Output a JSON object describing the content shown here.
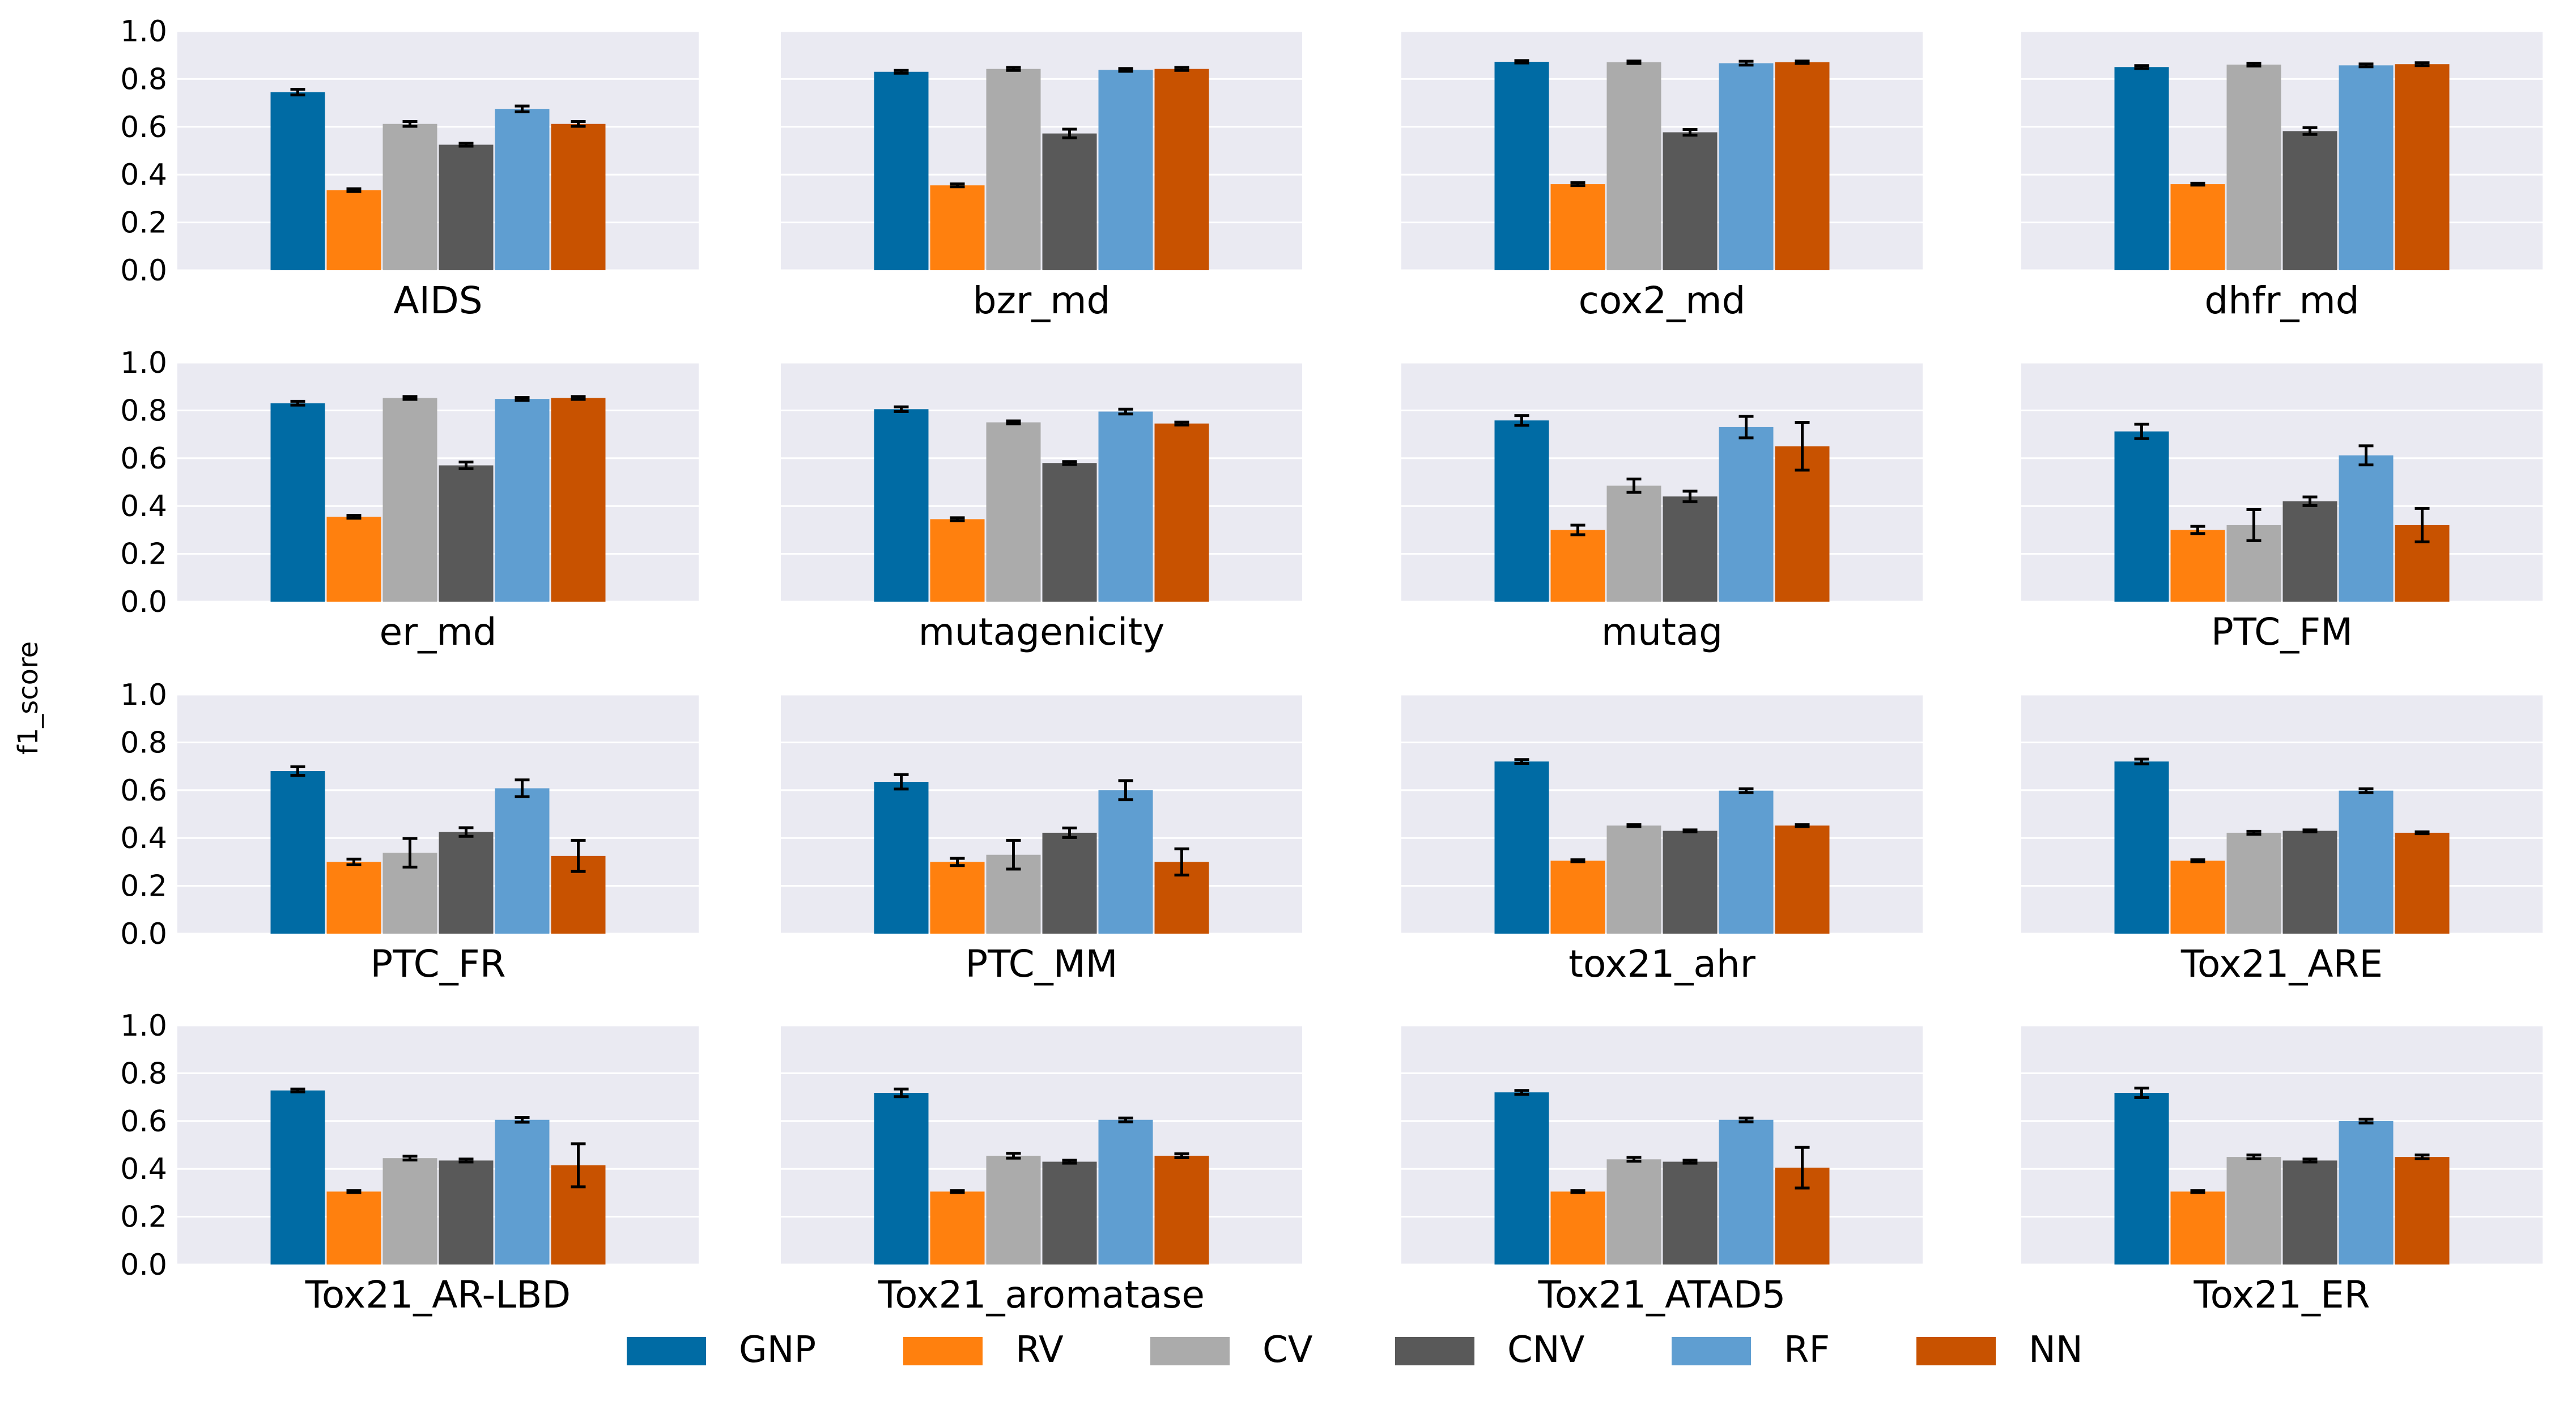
{
  "chart_data": {
    "type": "bar",
    "ylabel": "f1_score",
    "ylim": [
      0,
      1
    ],
    "yticks": [
      "0.0",
      "0.2",
      "0.4",
      "0.6",
      "0.8",
      "1.0"
    ],
    "series_names": [
      "GNP",
      "RV",
      "CV",
      "CNV",
      "RF",
      "NN"
    ],
    "colors": {
      "GNP": "#006BA4",
      "RV": "#FF800E",
      "CV": "#ABABAB",
      "CNV": "#595959",
      "RF": "#5F9ED1",
      "NN": "#C85200",
      "panel_bg": "#EAEAF2",
      "grid": "#FFFFFF"
    },
    "legend_position": "bottom-center",
    "panels": [
      {
        "title": "AIDS",
        "values": [
          0.745,
          0.335,
          0.612,
          0.525,
          0.675,
          0.612
        ],
        "errors": [
          0.012,
          0.006,
          0.01,
          0.006,
          0.012,
          0.01
        ]
      },
      {
        "title": "bzr_md",
        "values": [
          0.83,
          0.355,
          0.842,
          0.572,
          0.838,
          0.842
        ],
        "errors": [
          0.006,
          0.006,
          0.006,
          0.018,
          0.006,
          0.006
        ]
      },
      {
        "title": "cox2_md",
        "values": [
          0.872,
          0.36,
          0.87,
          0.577,
          0.866,
          0.87
        ],
        "errors": [
          0.005,
          0.006,
          0.005,
          0.012,
          0.008,
          0.005
        ]
      },
      {
        "title": "dhfr_md",
        "values": [
          0.85,
          0.36,
          0.86,
          0.582,
          0.857,
          0.862
        ],
        "errors": [
          0.006,
          0.004,
          0.006,
          0.014,
          0.006,
          0.006
        ]
      },
      {
        "title": "er_md",
        "values": [
          0.83,
          0.355,
          0.852,
          0.57,
          0.848,
          0.852
        ],
        "errors": [
          0.008,
          0.006,
          0.006,
          0.014,
          0.006,
          0.006
        ]
      },
      {
        "title": "mutagenicity",
        "values": [
          0.805,
          0.345,
          0.75,
          0.58,
          0.795,
          0.745
        ],
        "errors": [
          0.01,
          0.006,
          0.006,
          0.006,
          0.01,
          0.006
        ]
      },
      {
        "title": "mutag",
        "values": [
          0.758,
          0.3,
          0.485,
          0.44,
          0.73,
          0.65
        ],
        "errors": [
          0.02,
          0.02,
          0.028,
          0.022,
          0.045,
          0.1
        ]
      },
      {
        "title": "PTC_FM",
        "values": [
          0.712,
          0.3,
          0.32,
          0.42,
          0.612,
          0.32
        ],
        "errors": [
          0.03,
          0.015,
          0.065,
          0.018,
          0.04,
          0.07
        ]
      },
      {
        "title": "PTC_FR",
        "values": [
          0.68,
          0.3,
          0.338,
          0.425,
          0.608,
          0.325
        ],
        "errors": [
          0.018,
          0.012,
          0.06,
          0.018,
          0.035,
          0.065
        ]
      },
      {
        "title": "PTC_MM",
        "values": [
          0.635,
          0.3,
          0.33,
          0.422,
          0.6,
          0.3
        ],
        "errors": [
          0.03,
          0.015,
          0.06,
          0.02,
          0.04,
          0.055
        ]
      },
      {
        "title": "tox21_ahr",
        "values": [
          0.72,
          0.305,
          0.452,
          0.43,
          0.598,
          0.452
        ],
        "errors": [
          0.008,
          0.004,
          0.004,
          0.004,
          0.008,
          0.004
        ]
      },
      {
        "title": "Tox21_ARE",
        "values": [
          0.72,
          0.305,
          0.422,
          0.43,
          0.598,
          0.422
        ],
        "errors": [
          0.01,
          0.004,
          0.006,
          0.004,
          0.008,
          0.004
        ]
      },
      {
        "title": "Tox21_AR-LBD",
        "values": [
          0.728,
          0.305,
          0.445,
          0.435,
          0.605,
          0.415
        ],
        "errors": [
          0.006,
          0.004,
          0.008,
          0.006,
          0.01,
          0.09
        ]
      },
      {
        "title": "Tox21_aromatase",
        "values": [
          0.718,
          0.305,
          0.455,
          0.43,
          0.605,
          0.455
        ],
        "errors": [
          0.016,
          0.004,
          0.01,
          0.006,
          0.008,
          0.008
        ]
      },
      {
        "title": "Tox21_ATAD5",
        "values": [
          0.72,
          0.305,
          0.44,
          0.43,
          0.605,
          0.405
        ],
        "errors": [
          0.008,
          0.004,
          0.008,
          0.006,
          0.008,
          0.085
        ]
      },
      {
        "title": "Tox21_ER",
        "values": [
          0.718,
          0.305,
          0.45,
          0.435,
          0.6,
          0.45
        ],
        "errors": [
          0.02,
          0.004,
          0.008,
          0.006,
          0.008,
          0.008
        ]
      }
    ]
  }
}
